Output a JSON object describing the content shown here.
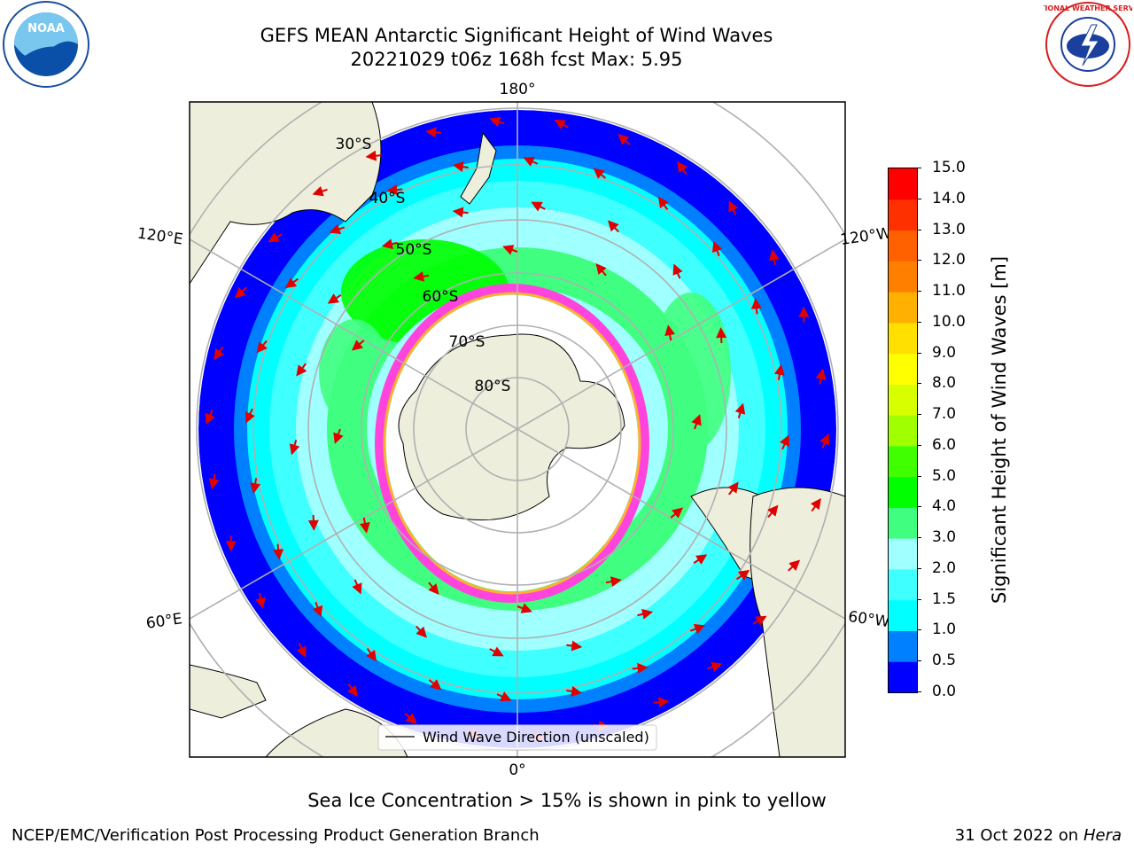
{
  "title": {
    "line1": "GEFS MEAN Antarctic Significant Height of Wind Waves",
    "line2": "20221029 t06z 168h fcst   Max: 5.95"
  },
  "logos": {
    "left_text": "NOAA",
    "right_text": "NATIONAL WEATHER SERVICE"
  },
  "map": {
    "projection": "south-polar-stereographic",
    "longitude_labels": [
      "180°",
      "120°E",
      "120°W",
      "60°E",
      "60°W",
      "0°"
    ],
    "latitude_labels": [
      "30°S",
      "40°S",
      "50°S",
      "60°S",
      "70°S",
      "80°S"
    ],
    "legend_label": "Wind Wave Direction (unscaled)",
    "arrow_color": "#e00000",
    "land_color": "#eeeedc",
    "ocean_base_color": "#0000ff"
  },
  "colorbar": {
    "label": "Significant Height of Wind Waves [m]",
    "ticks": [
      "0.0",
      "0.5",
      "1.0",
      "1.5",
      "2.0",
      "3.0",
      "4.0",
      "5.0",
      "6.0",
      "7.0",
      "8.0",
      "9.0",
      "10.0",
      "11.0",
      "12.0",
      "13.0",
      "14.0",
      "15.0"
    ],
    "colors": [
      "#0000ff",
      "#0080ff",
      "#00ffff",
      "#40ffff",
      "#a0ffff",
      "#40ff80",
      "#00ff00",
      "#40ff00",
      "#a0ff00",
      "#d8ff00",
      "#ffff00",
      "#ffe000",
      "#ffb000",
      "#ff8000",
      "#ff6000",
      "#ff3000",
      "#ff0000"
    ]
  },
  "caption": "Sea Ice Concentration > 15% is shown in pink to yellow",
  "footer": {
    "left": "NCEP/EMC/Verification Post Processing Product Generation Branch",
    "right_date": "31 Oct 2022 on ",
    "right_host": "Hera"
  }
}
